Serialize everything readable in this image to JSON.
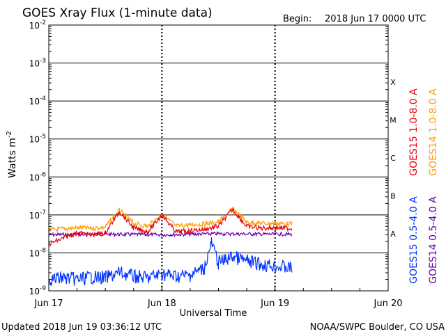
{
  "title": "GOES Xray Flux (1-minute data)",
  "begin_label": "Begin:",
  "begin_value": "2018 Jun 17 0000 UTC",
  "footer_left": "Updated 2018 Jun 19 03:36:12 UTC",
  "footer_right": "NOAA/SWPC Boulder, CO USA",
  "colors": {
    "goes15_long": "#e8000b",
    "goes14_long": "#ff9d00",
    "goes15_short": "#0033ff",
    "goes14_short": "#6600aa"
  },
  "chart_data": {
    "type": "line",
    "title": "GOES Xray Flux (1-minute data)",
    "xlabel": "Universal Time",
    "ylabel": "Watts m",
    "ylabel_superscript": "-2",
    "y_scale": "log",
    "ylim": [
      1e-09,
      0.01
    ],
    "y_ticks": [
      {
        "value": 1e-09,
        "base": "10",
        "exp": "-9"
      },
      {
        "value": 1e-08,
        "base": "10",
        "exp": "-8"
      },
      {
        "value": 1e-07,
        "base": "10",
        "exp": "-7"
      },
      {
        "value": 1e-06,
        "base": "10",
        "exp": "-6"
      },
      {
        "value": 1e-05,
        "base": "10",
        "exp": "-5"
      },
      {
        "value": 0.0001,
        "base": "10",
        "exp": "-4"
      },
      {
        "value": 0.001,
        "base": "10",
        "exp": "-3"
      },
      {
        "value": 0.01,
        "base": "10",
        "exp": "-2"
      }
    ],
    "x_ticks": [
      "Jun 17",
      "Jun 18",
      "Jun 19",
      "Jun 20"
    ],
    "xlim": [
      "2018-06-17 00:00",
      "2018-06-20 00:00"
    ],
    "grid": "horizontal lines at each decade; dotted vertical lines at day boundaries",
    "flare_classes": [
      {
        "label": "A",
        "min": 1e-08,
        "max": 1e-07
      },
      {
        "label": "B",
        "min": 1e-07,
        "max": 1e-06
      },
      {
        "label": "C",
        "min": 1e-06,
        "max": 1e-05
      },
      {
        "label": "M",
        "min": 1e-05,
        "max": 0.0001
      },
      {
        "label": "X",
        "min": 0.0001,
        "max": 0.001
      }
    ],
    "series": [
      {
        "name": "GOES15 1.0-8.0 A",
        "color": "#e8000b",
        "x": [
          "2018-06-17 00:00",
          "2018-06-17 03:00",
          "2018-06-17 06:00",
          "2018-06-17 09:00",
          "2018-06-17 12:00",
          "2018-06-17 15:00",
          "2018-06-17 18:00",
          "2018-06-17 21:00",
          "2018-06-18 00:00",
          "2018-06-18 03:00",
          "2018-06-18 06:00",
          "2018-06-18 09:00",
          "2018-06-18 12:00",
          "2018-06-18 15:00",
          "2018-06-18 18:00",
          "2018-06-18 21:00",
          "2018-06-19 00:00",
          "2018-06-19 03:36"
        ],
        "y": [
          1.7e-08,
          2.4e-08,
          3.4e-08,
          3e-08,
          3.4e-08,
          1.25e-07,
          4.5e-08,
          3.6e-08,
          1e-07,
          3.6e-08,
          3.8e-08,
          4.2e-08,
          5e-08,
          1.4e-07,
          5e-08,
          4.5e-08,
          4.6e-08,
          4.4e-08
        ]
      },
      {
        "name": "GOES14 1.0-8.0 A",
        "color": "#ff9d00",
        "x": [
          "2018-06-17 00:00",
          "2018-06-17 03:00",
          "2018-06-17 06:00",
          "2018-06-17 09:00",
          "2018-06-17 12:00",
          "2018-06-17 15:00",
          "2018-06-17 18:00",
          "2018-06-17 21:00",
          "2018-06-18 00:00",
          "2018-06-18 03:00",
          "2018-06-18 06:00",
          "2018-06-18 09:00",
          "2018-06-18 12:00",
          "2018-06-18 15:00",
          "2018-06-18 18:00",
          "2018-06-18 21:00",
          "2018-06-19 00:00",
          "2018-06-19 03:36"
        ],
        "y": [
          4e-08,
          4.3e-08,
          4.6e-08,
          4.4e-08,
          4.8e-08,
          1.3e-07,
          6e-08,
          5e-08,
          1.05e-07,
          5e-08,
          5.5e-08,
          5.8e-08,
          6.5e-08,
          1.45e-07,
          6.5e-08,
          6e-08,
          6e-08,
          5.8e-08
        ]
      },
      {
        "name": "GOES15 0.5-4.0 A",
        "color": "#0033ff",
        "x": [
          "2018-06-17 00:00",
          "2018-06-17 03:00",
          "2018-06-17 06:00",
          "2018-06-17 09:00",
          "2018-06-17 12:00",
          "2018-06-17 15:00",
          "2018-06-17 18:00",
          "2018-06-17 21:00",
          "2018-06-18 00:00",
          "2018-06-18 03:00",
          "2018-06-18 06:00",
          "2018-06-18 09:00",
          "2018-06-18 10:30",
          "2018-06-18 12:00",
          "2018-06-18 15:00",
          "2018-06-18 18:00",
          "2018-06-18 21:00",
          "2018-06-19 00:00",
          "2018-06-19 03:36"
        ],
        "y": [
          2e-09,
          2.2e-09,
          2e-09,
          2.3e-09,
          2.2e-09,
          3e-09,
          2.4e-09,
          2.2e-09,
          2.8e-09,
          2.4e-09,
          2.6e-09,
          4e-09,
          1.8e-08,
          5.5e-09,
          8e-09,
          6e-09,
          5e-09,
          4.5e-09,
          4e-09
        ]
      },
      {
        "name": "GOES14 0.5-4.0 A",
        "color": "#6600aa",
        "x": [
          "2018-06-17 00:00",
          "2018-06-17 12:00",
          "2018-06-18 00:00",
          "2018-06-18 12:00",
          "2018-06-19 00:00",
          "2018-06-19 03:36"
        ],
        "y": [
          3e-08,
          3.1e-08,
          3e-08,
          3.2e-08,
          3.1e-08,
          3.1e-08
        ]
      }
    ]
  }
}
